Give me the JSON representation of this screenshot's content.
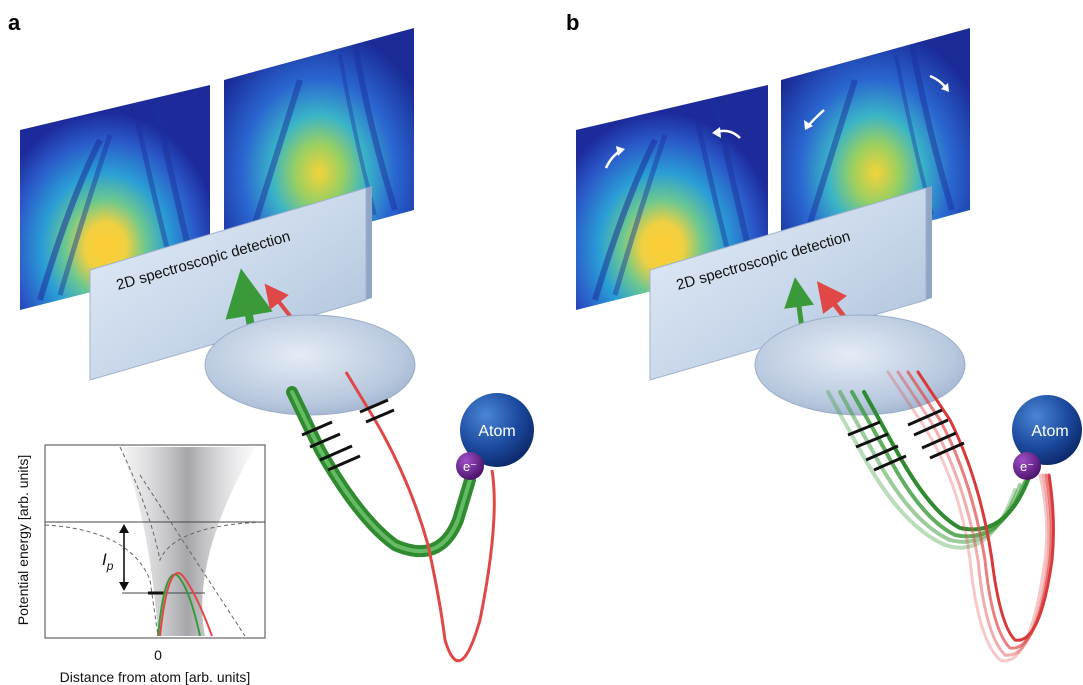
{
  "panels": [
    {
      "id": "a",
      "label": "a",
      "detector_text": "2D spectroscopic detection",
      "atom_text": "Atom",
      "electron_text": "e⁻"
    },
    {
      "id": "b",
      "label": "b",
      "detector_text": "2D spectroscopic detection",
      "atom_text": "Atom",
      "electron_text": "e⁻"
    }
  ],
  "inset": {
    "ylabel": "Potential energy [arb. units]",
    "xlabel": "Distance from atom [arb. units]",
    "xtick": "0",
    "ip_label": "I",
    "ip_sub": "p"
  },
  "colors": {
    "green_trajectory": "#3a9a3a",
    "red_trajectory": "#e04848",
    "atom": "#1e4fa0",
    "electron": "#6a1f8a",
    "detector_plate": "#c8d8ea",
    "lens": "#b4c6dc"
  }
}
